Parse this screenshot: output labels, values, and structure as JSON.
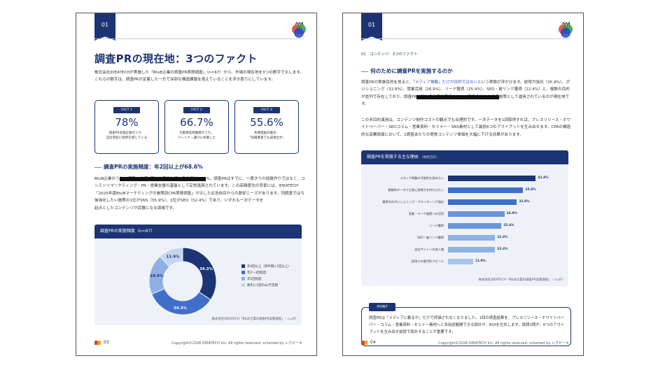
{
  "page1": {
    "tab": "01",
    "title": "調査PRの現在地：3つのファクト",
    "intro": "株式会社IDEATECHが実施した「BtoB企業の調査PR実態調査」（n=67）から、市場の現在地を3つの数字で示します。これらの数字は、調査PRが定着した一方で深刻な構造課題を抱えていることを浮き彫りにしています。",
    "facts": [
      {
        "tag": "FACT 1",
        "value": "78%",
        "desc1": "調査PR実施企業のうち、",
        "desc2": "自社完結に限界を感じている"
      },
      {
        "tag": "FACT 2",
        "value": "66.7%",
        "desc1": "外部委託経験者のうち、",
        "desc2": "パートナー選びに失敗した"
      },
      {
        "tag": "FACT 3",
        "value": "55.6%",
        "desc1": "失敗理由の最多：",
        "desc2": "「実績豊富でも成果出ず」"
      }
    ],
    "section": "調査PRの実施頻度：年2回以上が68.6%",
    "body_prefix": "BtoB企業のう",
    "body_redacted": "ち、調査PRを年2回以上実施している企業は68.6",
    "body_suffix": "%。調査PRはすでに、一度きりの話題作りではなく、コンテンツマーケティング・PR・営業支援の基盤として定常運用されています。この高頻度化の背景には、IDEATECH「2025年版BtoBマーケティングの施策別CPA実態調査」が示した広告依存からの脱却ニーズがあります。同調査では今後強化したい施策の1位がSNS（55.9%）、2位がSEO（52.4%）であり、いずれも一次データを",
    "body_last": "起点としたコンテンツが武器になる領域です。",
    "chart_title": "調査PRの実施頻度（n=67）",
    "chart_source": "株式会社IDEATECH「BtoB企業の調査PR実態調査」｜n=67",
    "page_no": "03",
    "copyright": "Copyright©2026 IDEATECH Inc. All rights reserved. schemed by レグビーキ"
  },
  "donut": {
    "chart_data": {
      "type": "pie",
      "categories": [
        "年4回以上（四半期に1回以上）",
        "年2〜3回程度",
        "年1回程度",
        "数年に1回のみ/不定期"
      ],
      "values": [
        34.3,
        34.3,
        19.4,
        11.9
      ],
      "colors": [
        "#1c3473",
        "#3f6fc9",
        "#8fb0e3",
        "#c3d6f0"
      ],
      "labels": [
        "34.3%",
        "34.3%",
        "19.4%",
        "11.9%"
      ]
    }
  },
  "page2": {
    "tab": "01",
    "breadcrumb": "01　コンテンツ：3つのファクト",
    "section": "何のために調査PRを実施するのか",
    "p1_a": "調査PRの実施目的を見ると、",
    "p1_hl": "「メディア掲載」だけが目的ではない",
    "p1_b": "という実態が浮かびます。説得力強化（35.8%）、ポジショニング（32.8%）、営業活用（26.9%）、リード獲得（25.4%）、SEO・被リンク獲得（22.4%）と、複数の目的が並列で存在しており、調査PR",
    "p1_redacted": "は単なる広報施策ではなく、事業全体を支える",
    "p1_c": "施策として運用されているのが現在地です。",
    "p2": "この多目的運用は、コンテンツ制作コストの観点でも合理的です。一次データを1回取得すれば、プレスリリース・ホワイトペーパー・SEOコラム・営業資料・セミナー・SNS素材として最低6つのアウトプットを生み出せます。CPAの構造的な高騰局面において、1調査あたりの実質コンテンツ単価を大幅に下げる効果があります。",
    "chart_title": "調査PRを実施する主な理由",
    "chart_sub": "（複数回答）",
    "chart_source": "株式会社IDEATECH「BtoB企業の調査PR実態調査」｜n=67",
    "point_tag": "POINT",
    "point_text": "調査PRは「メディアに載るか」だけで評価されなくなりました。1回の調査結果を、プレスリリース・ホワイトペーパー・コラム・営業資料・セミナー素材へと多用途展開できる設計が、ROIを左右します。設問1問が、6つのアウトプットを生み出す前提で設計することが重要です。",
    "page_no": "04",
    "copyright": "Copyright©2026 IDEATECH Inc. All rights reserved. schemed by レグビーキ"
  },
  "bars": {
    "chart_data": {
      "type": "bar",
      "categories": [
        "メディア掲載の可能性を高めたい",
        "客観的データで主張に説得力を持たせたい",
        "業界内のポジショニング・ブランディング強化",
        "営業・マーケ施策への活用",
        "リード獲得",
        "SEO・被リンク獲得",
        "自社サイトへの流入増",
        "採用での専門性アピール"
      ],
      "values": [
        41.8,
        35.8,
        32.8,
        26.9,
        25.4,
        22.4,
        22.4,
        11.9
      ],
      "labels": [
        "41.8%",
        "35.8%",
        "32.8%",
        "26.9%",
        "25.4%",
        "22.4%",
        "22.4%",
        "11.9%"
      ],
      "colors": [
        "#1c3473",
        "#3f6fc9",
        "#3f6fc9",
        "#6a93dc",
        "#6a93dc",
        "#8fb0e3",
        "#8fb0e3",
        "#a9c4ec"
      ],
      "xlim": [
        0,
        50
      ]
    }
  }
}
